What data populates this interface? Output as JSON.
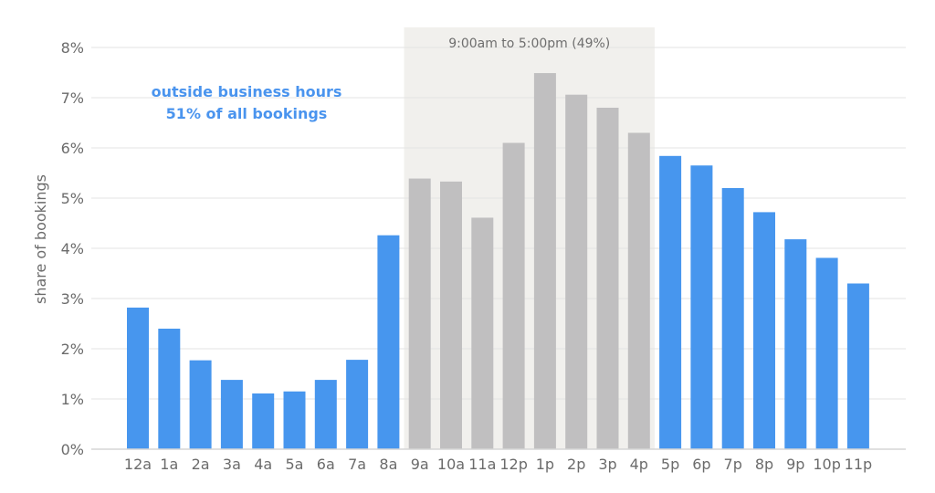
{
  "chart_data": {
    "type": "bar",
    "ylabel": "share of bookings",
    "y_tick_labels": [
      "0%",
      "1%",
      "2%",
      "3%",
      "4%",
      "5%",
      "6%",
      "7%",
      "8%"
    ],
    "ylim": [
      0,
      8
    ],
    "grid": true,
    "categories": [
      "12a",
      "1a",
      "2a",
      "3a",
      "4a",
      "5a",
      "6a",
      "7a",
      "8a",
      "9a",
      "10a",
      "11a",
      "12p",
      "1p",
      "2p",
      "3p",
      "4p",
      "5p",
      "6p",
      "7p",
      "8p",
      "9p",
      "10p",
      "11p"
    ],
    "values": [
      2.82,
      2.4,
      1.77,
      1.38,
      1.11,
      1.15,
      1.38,
      1.78,
      4.26,
      5.39,
      5.33,
      4.61,
      6.1,
      7.49,
      7.06,
      6.8,
      6.3,
      5.84,
      5.65,
      5.2,
      4.72,
      4.18,
      3.81,
      3.3
    ],
    "business_hours": {
      "start_category": "9a",
      "end_category": "4p",
      "label": "9:00am to 5:00pm  (49%)"
    },
    "annotation": {
      "line1": "outside business hours",
      "line2": "51% of all bookings"
    },
    "colors": {
      "outside": "#4796ee",
      "business": "#c0bfc0",
      "shade": "#f1f0ed",
      "grid": "#e3e3e3"
    }
  }
}
